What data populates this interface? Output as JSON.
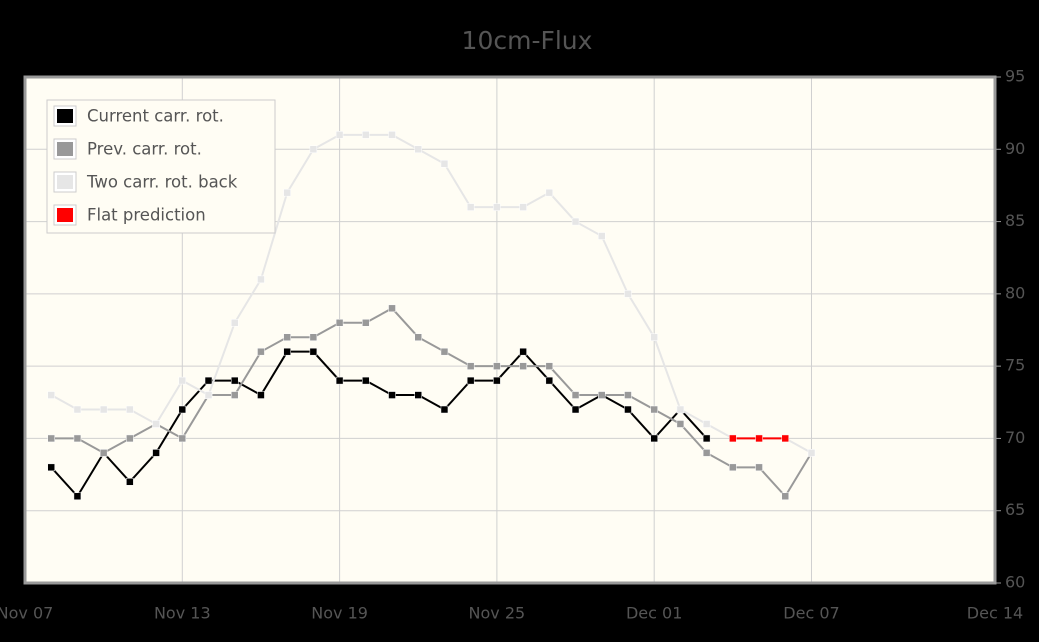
{
  "chart_data": {
    "type": "line",
    "title": "10cm-Flux",
    "xlim": [
      "Nov 07",
      "Dec 14"
    ],
    "xticks": [
      "Nov 07",
      "Nov 13",
      "Nov 19",
      "Nov 25",
      "Dec 01",
      "Dec 07",
      "Dec 14"
    ],
    "ylim": [
      60,
      95
    ],
    "yticks": [
      60,
      65,
      70,
      75,
      80,
      85,
      90,
      95
    ],
    "grid": true,
    "legend": "top-left",
    "series": [
      {
        "name": "Current carr. rot.",
        "color": "#000000",
        "x": [
          "Nov 08",
          "Nov 09",
          "Nov 10",
          "Nov 11",
          "Nov 12",
          "Nov 13",
          "Nov 14",
          "Nov 15",
          "Nov 16",
          "Nov 17",
          "Nov 18",
          "Nov 19",
          "Nov 20",
          "Nov 21",
          "Nov 22",
          "Nov 23",
          "Nov 24",
          "Nov 25",
          "Nov 26",
          "Nov 27",
          "Nov 28",
          "Nov 29",
          "Nov 30",
          "Dec 01",
          "Dec 02",
          "Dec 03"
        ],
        "values": [
          68,
          66,
          69,
          67,
          69,
          72,
          74,
          74,
          73,
          76,
          76,
          74,
          74,
          73,
          73,
          72,
          74,
          74,
          76,
          74,
          72,
          73,
          72,
          70,
          72,
          70
        ]
      },
      {
        "name": "Prev. carr. rot.",
        "color": "#999999",
        "x": [
          "Nov 08",
          "Nov 09",
          "Nov 10",
          "Nov 11",
          "Nov 12",
          "Nov 13",
          "Nov 14",
          "Nov 15",
          "Nov 16",
          "Nov 17",
          "Nov 18",
          "Nov 19",
          "Nov 20",
          "Nov 21",
          "Nov 22",
          "Nov 23",
          "Nov 24",
          "Nov 25",
          "Nov 26",
          "Nov 27",
          "Nov 28",
          "Nov 29",
          "Nov 30",
          "Dec 01",
          "Dec 02",
          "Dec 03",
          "Dec 04",
          "Dec 05",
          "Dec 06",
          "Dec 07"
        ],
        "values": [
          70,
          70,
          69,
          70,
          71,
          70,
          73,
          73,
          76,
          77,
          77,
          78,
          78,
          79,
          77,
          76,
          75,
          75,
          75,
          75,
          73,
          73,
          73,
          72,
          71,
          69,
          68,
          68,
          66,
          69
        ]
      },
      {
        "name": "Two carr. rot. back",
        "color": "#e6e6e6",
        "x": [
          "Nov 08",
          "Nov 09",
          "Nov 10",
          "Nov 11",
          "Nov 12",
          "Nov 13",
          "Nov 14",
          "Nov 15",
          "Nov 16",
          "Nov 17",
          "Nov 18",
          "Nov 19",
          "Nov 20",
          "Nov 21",
          "Nov 22",
          "Nov 23",
          "Nov 24",
          "Nov 25",
          "Nov 26",
          "Nov 27",
          "Nov 28",
          "Nov 29",
          "Nov 30",
          "Dec 01",
          "Dec 02",
          "Dec 03",
          "Dec 04",
          "Dec 05",
          "Dec 06",
          "Dec 07"
        ],
        "values": [
          73,
          72,
          72,
          72,
          71,
          74,
          73,
          78,
          81,
          87,
          90,
          91,
          91,
          91,
          90,
          89,
          86,
          86,
          86,
          87,
          85,
          84,
          80,
          77,
          72,
          71,
          70,
          70,
          70,
          69
        ]
      },
      {
        "name": "Flat prediction",
        "color": "#ff0000",
        "x": [
          "Dec 04",
          "Dec 05",
          "Dec 06"
        ],
        "values": [
          70,
          70,
          70
        ]
      }
    ]
  }
}
